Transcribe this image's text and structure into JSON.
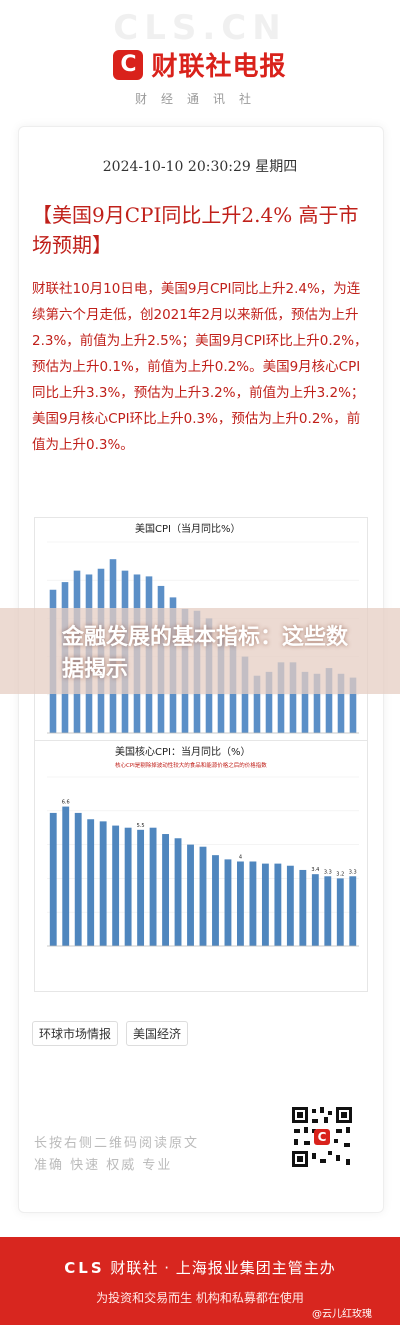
{
  "header": {
    "logo_letter": "C",
    "logo_text": "财联社电报",
    "subtitle": "财经通讯社",
    "bg_watermark": "CLS.CN",
    "brand_color": "#d9221b"
  },
  "article": {
    "datetime": "2024-10-10 20:30:29 星期四",
    "headline": "【美国9月CPI同比上升2.4% 高于市场预期】",
    "body": "财联社10月10日电，美国9月CPI同比上升2.4%，为连续第六个月走低，创2021年2月以来新低，预估为上升2.3%，前值为上升2.5%；美国9月CPI环比上升0.2%，预估为上升0.1%，前值为上升0.2%。美国9月核心CPI同比上升3.3%，预估为上升3.2%，前值为上升3.2%；美国9月核心CPI环比上升0.3%，预估为上升0.2%，前值为上升0.3%。"
  },
  "overlay": {
    "text": "金融发展的基本指标：这些数据揭示"
  },
  "tags": [
    "环球市场情报",
    "美国经济"
  ],
  "qr": {
    "scan_text_1": "长按右侧二维码阅读原文",
    "scan_text_2": "准确 快速 权威 专业"
  },
  "footer": {
    "line1_cls": "CLS",
    "line1_rest": "财联社 · 上海报业集团主管主办",
    "line2": "为投资和交易而生 机构和私募都在使用",
    "credit": "@云儿红玫瑰",
    "footer_color": "#d8261f"
  },
  "chart_data": [
    {
      "type": "bar",
      "title": "美国CPI（当月同比%）",
      "categories": [
        "",
        "",
        "",
        "",
        "",
        "",
        "",
        "",
        "",
        "",
        "",
        "",
        "",
        "",
        "",
        "",
        "",
        "",
        "",
        "",
        "",
        "",
        "",
        "",
        "",
        ""
      ],
      "values": [
        7.5,
        7.9,
        8.5,
        8.3,
        8.6,
        9.1,
        8.5,
        8.3,
        8.2,
        7.7,
        7.1,
        6.5,
        6.4,
        6.0,
        5.0,
        4.9,
        4.0,
        3.0,
        3.2,
        3.7,
        3.7,
        3.2,
        3.1,
        3.4,
        3.1,
        2.9
      ],
      "ylim": [
        0,
        10
      ],
      "color": "#5b8fc7"
    },
    {
      "type": "bar",
      "title": "美国核心CPI：当月同比（%）",
      "subtitle": "核心CPI是剔除掉波动性较大的食品和能源价格之后的价格指数",
      "categories": [
        "",
        "",
        "",
        "",
        "",
        "",
        "",
        "",
        "",
        "",
        "",
        "",
        "",
        "",
        "",
        "",
        "",
        "",
        "",
        "",
        "",
        "",
        "",
        "",
        ""
      ],
      "values": [
        6.3,
        6.6,
        6.3,
        6.0,
        5.9,
        5.7,
        5.6,
        5.5,
        5.6,
        5.3,
        5.1,
        4.8,
        4.7,
        4.3,
        4.1,
        4.0,
        4.0,
        3.9,
        3.9,
        3.8,
        3.6,
        3.4,
        3.3,
        3.2,
        3.3
      ],
      "labels": {
        "1": "6.6",
        "7": "5.5",
        "15": "4",
        "21": "3.4",
        "22": "3.3",
        "23": "3.2",
        "24": "3.3"
      },
      "ylim": [
        0,
        8
      ],
      "color": "#4f86be"
    }
  ]
}
